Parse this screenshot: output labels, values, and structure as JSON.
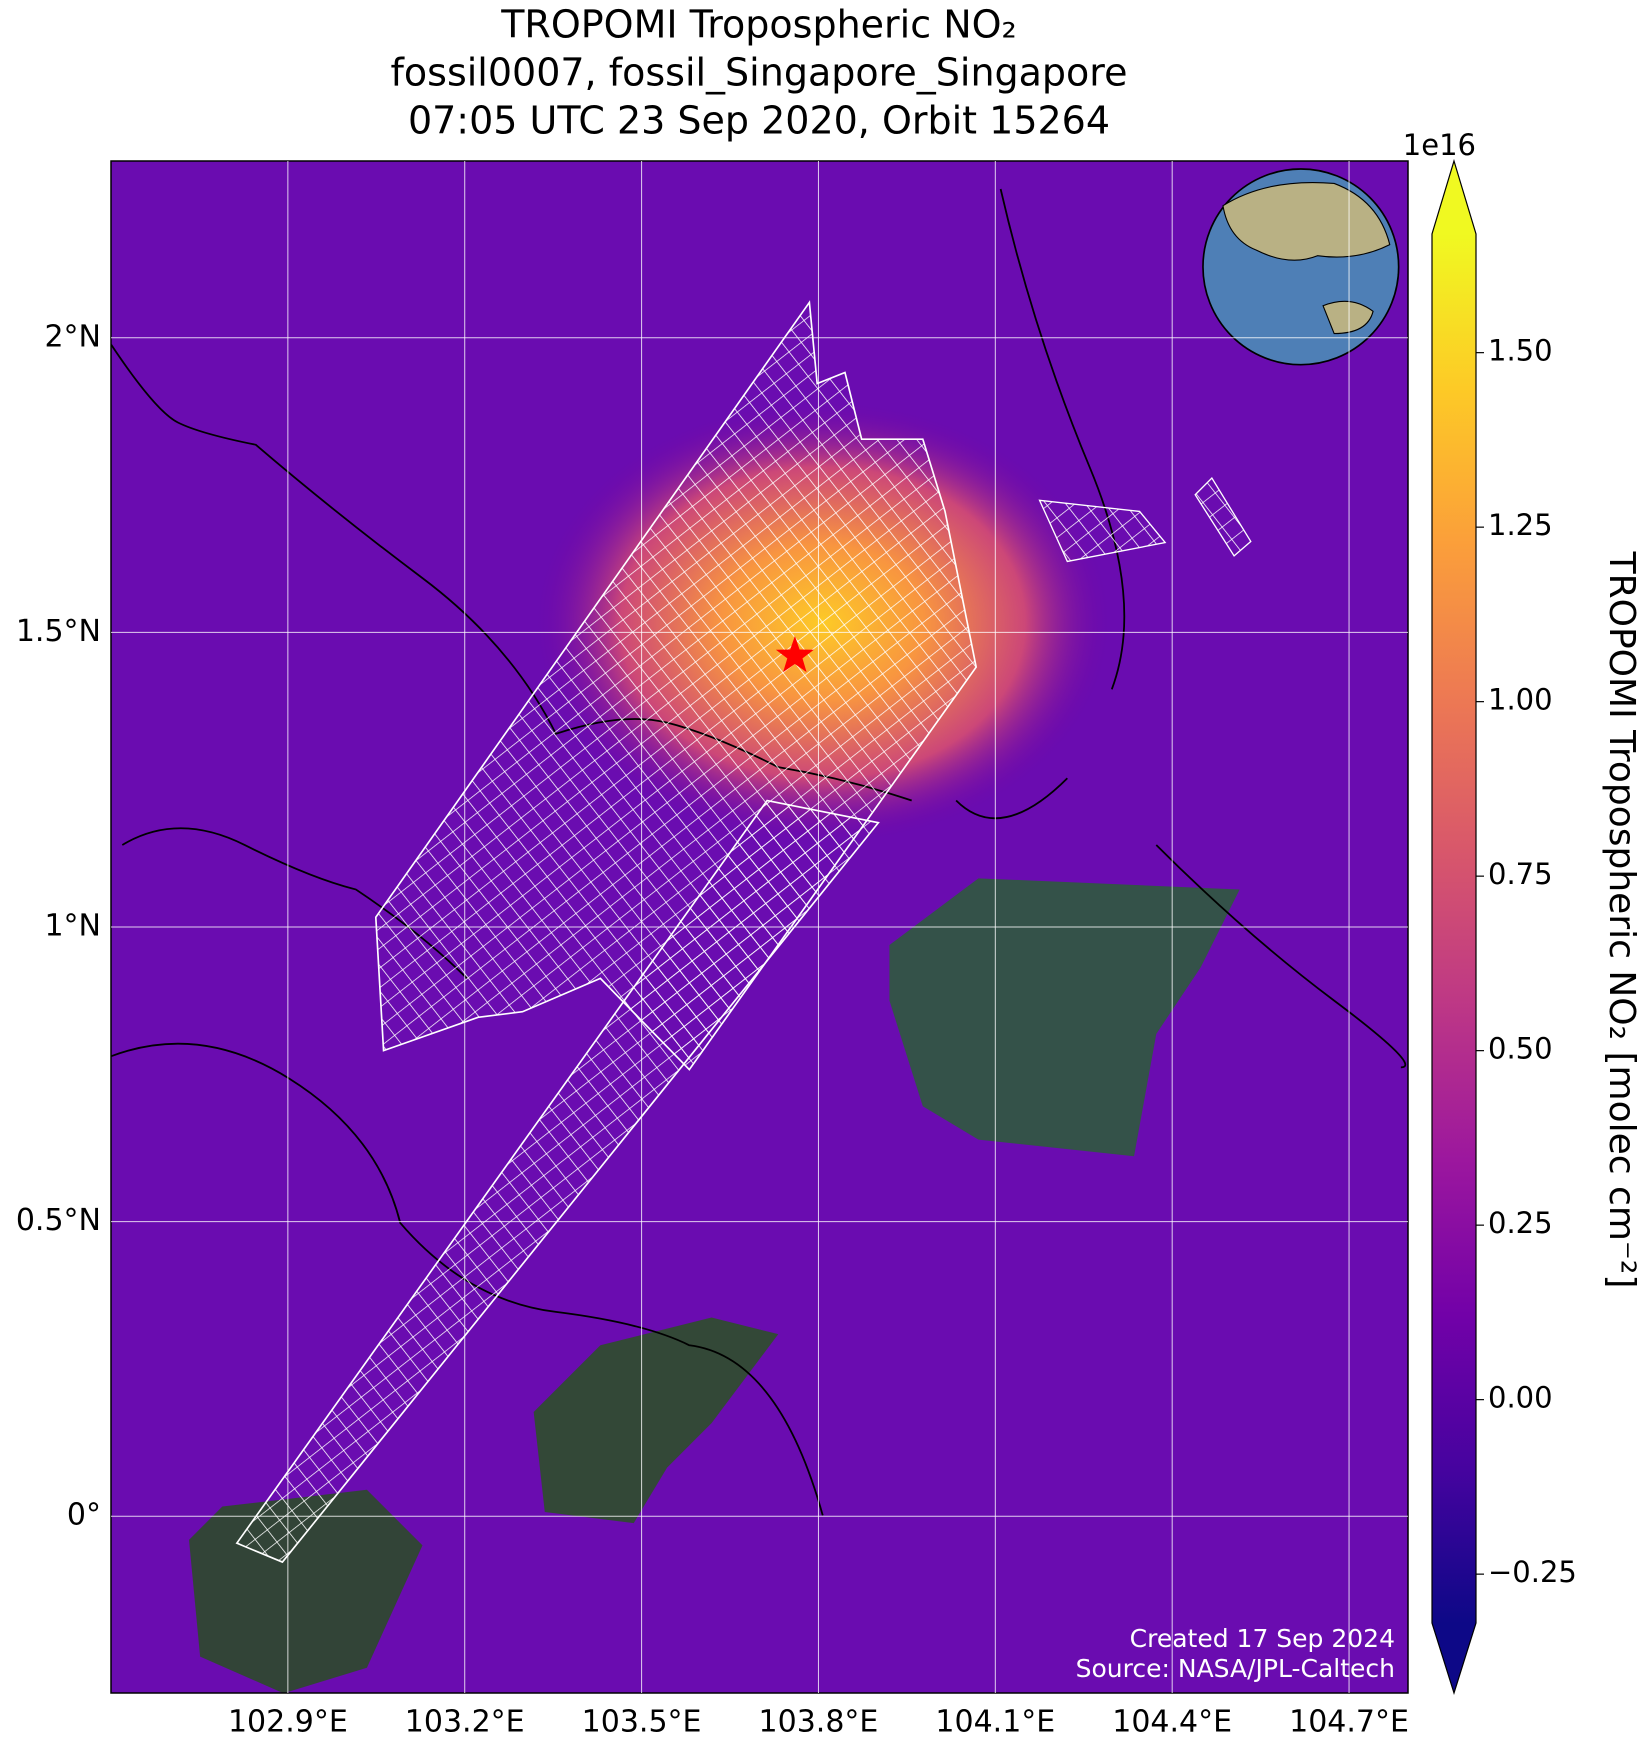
{
  "chart_data": {
    "type": "map",
    "title": [
      "TROPOMI Tropospheric NO₂",
      "fossil0007, fossil_Singapore_Singapore",
      "07:05 UTC 23 Sep 2020, Orbit 15264"
    ],
    "xlim": [
      102.6,
      104.8
    ],
    "ylim": [
      -0.3,
      2.3
    ],
    "grid": true,
    "xticks": [
      {
        "value": 102.9,
        "label": "102.9°E"
      },
      {
        "value": 103.2,
        "label": "103.2°E"
      },
      {
        "value": 103.5,
        "label": "103.5°E"
      },
      {
        "value": 103.8,
        "label": "103.8°E"
      },
      {
        "value": 104.1,
        "label": "104.1°E"
      },
      {
        "value": 104.4,
        "label": "104.4°E"
      },
      {
        "value": 104.7,
        "label": "104.7°E"
      }
    ],
    "yticks": [
      {
        "value": 0,
        "label": "0°"
      },
      {
        "value": 0.5,
        "label": "0.5°N"
      },
      {
        "value": 1,
        "label": "1°N"
      },
      {
        "value": 1.5,
        "label": "1.5°N"
      },
      {
        "value": 2,
        "label": "2°N"
      }
    ],
    "colorbar": {
      "label": "TROPOMI Tropospheric NO₂ [molec cm⁻²]",
      "offset_label": "1e16",
      "colormap": "plasma",
      "extend": "both",
      "lim": [
        -0.32,
        1.67
      ],
      "ticks": [
        {
          "value": -0.25,
          "label": "−0.25"
        },
        {
          "value": 0,
          "label": "0.00"
        },
        0.25,
        {
          "value": 0.5,
          "label": "0.50"
        },
        0.75,
        {
          "value": 1,
          "label": "1.00"
        },
        {
          "value": 1.25,
          "label": "1.25"
        },
        {
          "value": 1.5,
          "label": "1.50"
        }
      ]
    },
    "marker": {
      "lon": 103.76,
      "lat": 1.46,
      "color": "#ff0000"
    },
    "annotations": [
      "Created 17 Sep 2024",
      "Source: NASA/JPL-Caltech"
    ]
  }
}
